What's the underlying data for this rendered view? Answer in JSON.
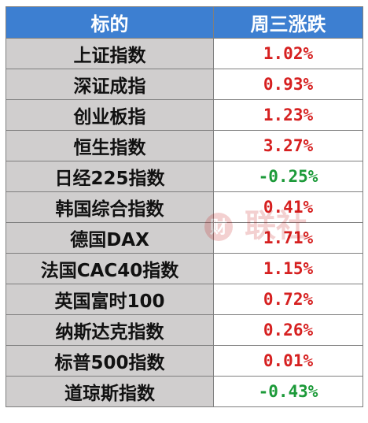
{
  "table": {
    "header": {
      "name": "标的",
      "value": "周三涨跌"
    },
    "rows": [
      {
        "name": "上证指数",
        "value": "1.02%",
        "direction": "up"
      },
      {
        "name": "深证成指",
        "value": "0.93%",
        "direction": "up"
      },
      {
        "name": "创业板指",
        "value": "1.23%",
        "direction": "up"
      },
      {
        "name": "恒生指数",
        "value": "3.27%",
        "direction": "up"
      },
      {
        "name": "日经225指数",
        "value": "-0.25%",
        "direction": "down"
      },
      {
        "name": "韩国综合指数",
        "value": "0.41%",
        "direction": "up"
      },
      {
        "name": "德国DAX",
        "value": "1.71%",
        "direction": "up"
      },
      {
        "name": "法国CAC40指数",
        "value": "1.15%",
        "direction": "up"
      },
      {
        "name": "英国富时100",
        "value": "0.72%",
        "direction": "up"
      },
      {
        "name": "纳斯达克指数",
        "value": "0.26%",
        "direction": "up"
      },
      {
        "name": "标普500指数",
        "value": "0.01%",
        "direction": "up"
      },
      {
        "name": "道琼斯指数",
        "value": "-0.43%",
        "direction": "down"
      }
    ]
  },
  "colors": {
    "header_bg": "#3d7fd1",
    "name_bg": "#d0cece",
    "up": "#d62020",
    "down": "#1c9a39"
  },
  "watermark": {
    "text": "财联社",
    "icon": "cls-logo-icon"
  }
}
